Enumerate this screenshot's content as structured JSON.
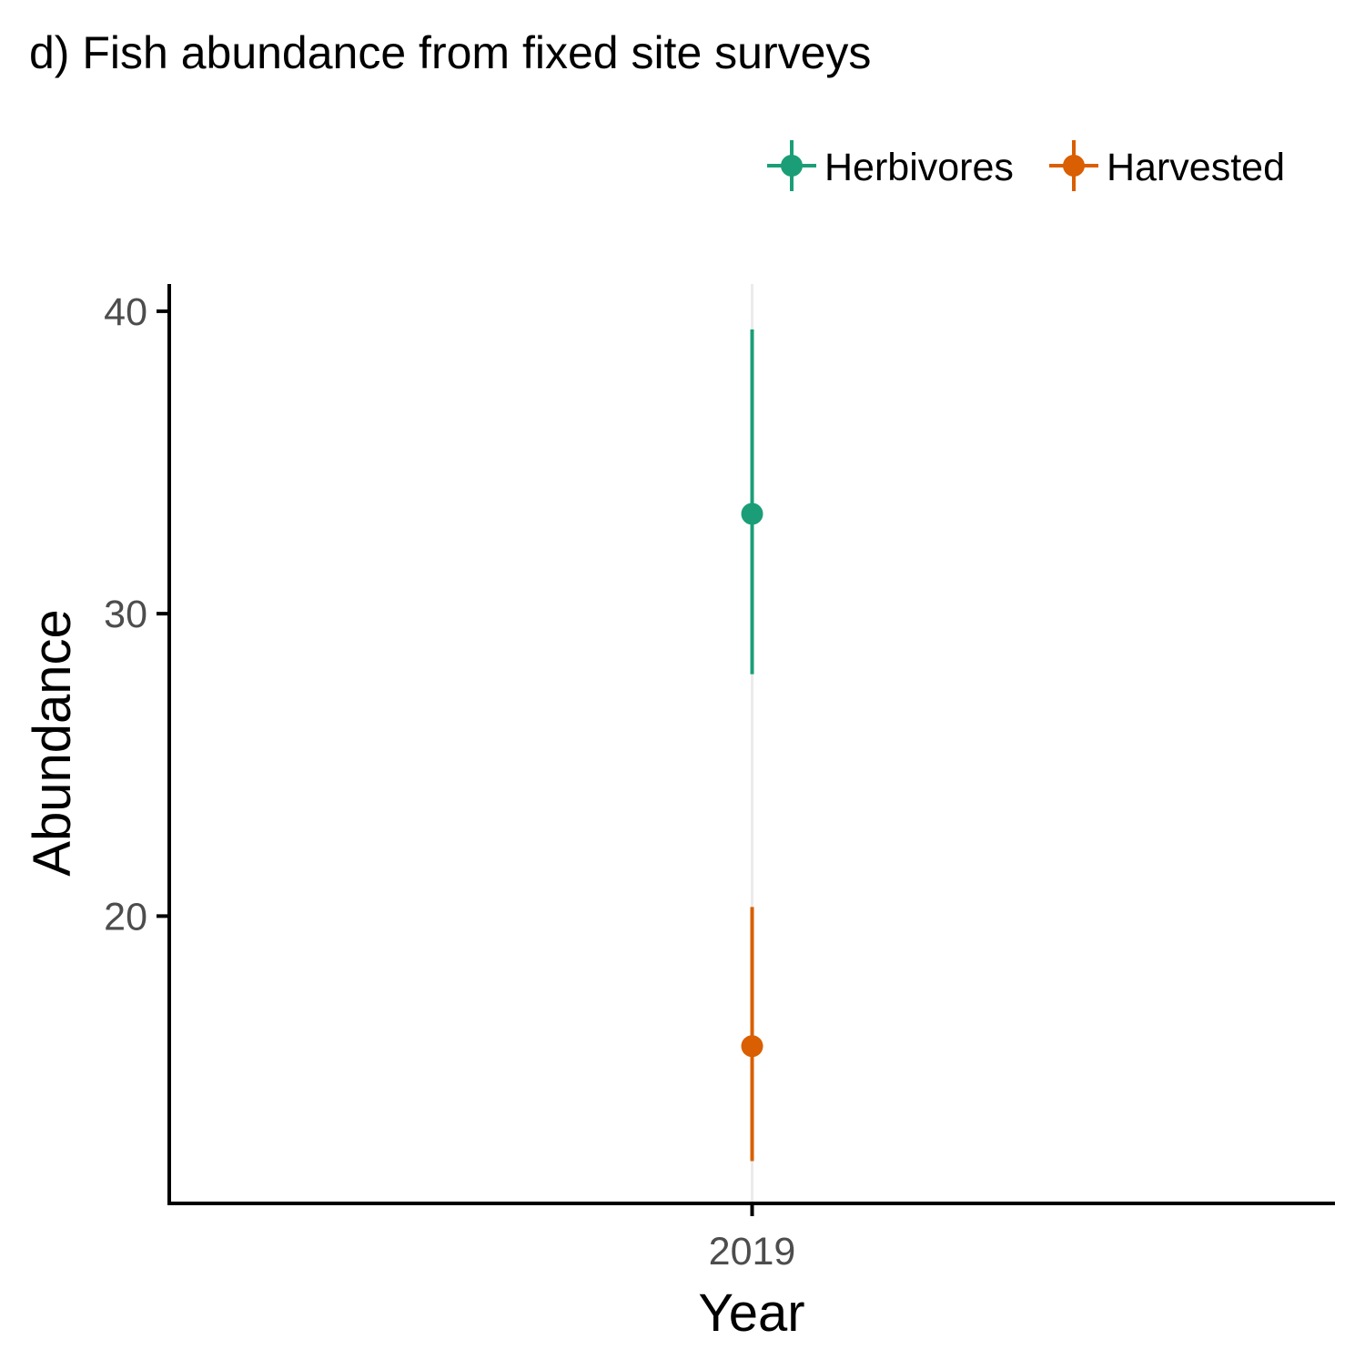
{
  "chart_data": {
    "type": "scatter",
    "title": "d) Fish abundance from fixed site surveys",
    "xlabel": "Year",
    "ylabel": "Abundance",
    "categories": [
      "2019"
    ],
    "ylim": [
      10.5,
      40.9
    ],
    "yticks": [
      20,
      30,
      40
    ],
    "grid": "vertical major gridline at x category only",
    "legend_position": "top-right",
    "series": [
      {
        "name": "Herbivores",
        "color": "#1b9e77",
        "points": [
          {
            "x": "2019",
            "y": 33.3,
            "ymin": 28.0,
            "ymax": 39.4
          }
        ]
      },
      {
        "name": "Harvested",
        "color": "#d95f02",
        "points": [
          {
            "x": "2019",
            "y": 15.7,
            "ymin": 11.9,
            "ymax": 20.3
          }
        ]
      }
    ]
  }
}
